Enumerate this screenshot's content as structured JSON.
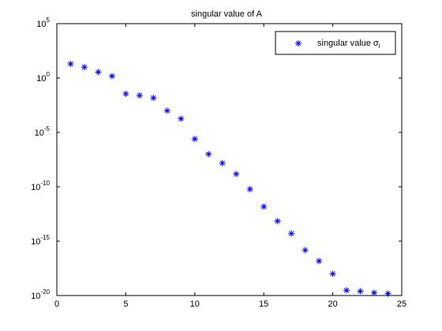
{
  "chart_data": {
    "type": "scatter",
    "title": "singular value of A",
    "xlabel": "",
    "ylabel": "",
    "xlim": [
      0,
      25
    ],
    "ylim": [
      1e-20,
      100000.0
    ],
    "y_scale": "log",
    "x_ticks": [
      "0",
      "5",
      "10",
      "15",
      "20",
      "25"
    ],
    "y_ticks": [
      {
        "base": "10",
        "exp": "5"
      },
      {
        "base": "10",
        "exp": "0"
      },
      {
        "base": "10",
        "exp": "-5"
      },
      {
        "base": "10",
        "exp": "-10"
      },
      {
        "base": "10",
        "exp": "-15"
      },
      {
        "base": "10",
        "exp": "-20"
      }
    ],
    "grid": false,
    "legend": {
      "placement": "top-right",
      "label": "singular value σ",
      "label_sub": "i"
    },
    "marker_color": "#0000ff",
    "marker": "asterisk",
    "series": [
      {
        "name": "singular value σi",
        "x": [
          1,
          2,
          3,
          4,
          5,
          6,
          7,
          8,
          9,
          10,
          11,
          12,
          13,
          14,
          15,
          16,
          17,
          18,
          19,
          20,
          21,
          22,
          23,
          24
        ],
        "y": [
          20,
          10,
          3.5,
          1.5,
          0.035,
          0.025,
          0.015,
          0.001,
          0.00018,
          2.5e-06,
          1e-07,
          1.5e-08,
          1.5e-09,
          6e-11,
          1.5e-12,
          7e-14,
          5e-15,
          1.5e-16,
          1.5e-17,
          1e-18,
          3e-20,
          2.5e-20,
          1.8e-20,
          1.5e-20
        ]
      }
    ]
  }
}
